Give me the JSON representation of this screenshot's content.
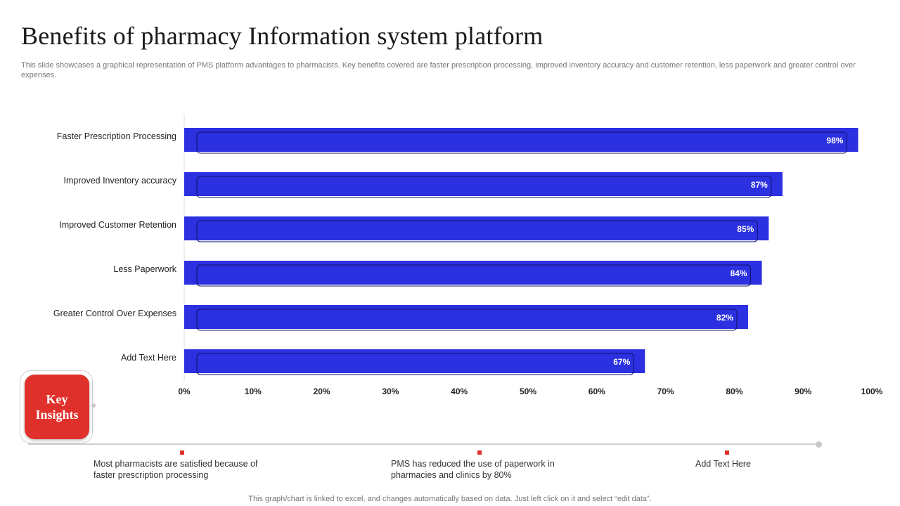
{
  "title": "Benefits of pharmacy Information system platform",
  "subtitle": "This slide showcases a graphical representation of PMS platform advantages to pharmacists. Key benefits covered are faster prescription processing, improved inventory accuracy and customer retention, less paperwork and greater control over expenses.",
  "colors": {
    "bar": "#2b30e0",
    "accent": "#e0302b"
  },
  "chart_data": {
    "type": "bar",
    "orientation": "horizontal",
    "categories": [
      "Faster Prescription Processing",
      "Improved Inventory accuracy",
      "Improved Customer Retention",
      "Less Paperwork",
      "Greater Control Over Expenses",
      "Add Text Here"
    ],
    "values": [
      98,
      87,
      85,
      84,
      82,
      67
    ],
    "value_labels": [
      "98%",
      "87%",
      "85%",
      "84%",
      "82%",
      "67%"
    ],
    "x_ticks": [
      "0%",
      "10%",
      "20%",
      "30%",
      "40%",
      "50%",
      "60%",
      "70%",
      "80%",
      "90%",
      "100%"
    ],
    "xlim": [
      0,
      100
    ],
    "title": "",
    "xlabel": "",
    "ylabel": "",
    "grid": false,
    "legend": "none"
  },
  "key_insights": {
    "label_line1": "Key",
    "label_line2": "Insights",
    "items": [
      {
        "line1": "Most pharmacists are satisfied because of",
        "line2": "faster prescription processing"
      },
      {
        "line1": "PMS has reduced the use of paperwork in",
        "line2": "pharmacies and clinics by 80%"
      },
      {
        "line1": "Add Text Here",
        "line2": ""
      }
    ]
  },
  "footer": "This graph/chart is linked to excel, and changes automatically based on data. Just left click on it and select “edit data”."
}
